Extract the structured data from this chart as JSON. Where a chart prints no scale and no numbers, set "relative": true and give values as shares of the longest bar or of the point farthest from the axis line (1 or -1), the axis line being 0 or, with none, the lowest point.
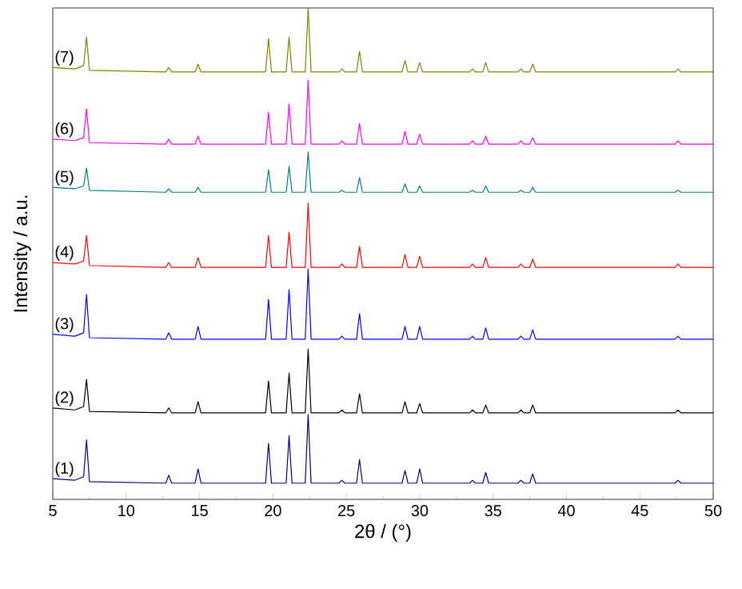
{
  "chart_data": {
    "type": "line",
    "relative": true,
    "xlabel": "2θ / (°)",
    "ylabel": "Intensity / a.u.",
    "xlim": [
      5,
      50
    ],
    "xticks": [
      5,
      10,
      15,
      20,
      25,
      30,
      35,
      40,
      45,
      50
    ],
    "legend": false,
    "marker": "none",
    "line_style": "solid",
    "x": [
      5,
      6.5,
      7.1,
      7.3,
      7.5,
      12.7,
      12.9,
      13.1,
      14.7,
      14.9,
      15.1,
      19.5,
      19.7,
      19.9,
      20.9,
      21.1,
      21.3,
      22.2,
      22.4,
      22.6,
      24.5,
      24.7,
      24.9,
      25.7,
      25.9,
      26.1,
      28.8,
      29.0,
      29.2,
      29.8,
      30.0,
      30.2,
      33.4,
      33.6,
      33.8,
      34.3,
      34.5,
      34.7,
      36.7,
      36.9,
      37.1,
      37.5,
      37.7,
      37.9,
      47.4,
      47.6,
      47.8,
      50
    ],
    "series": [
      {
        "name": "(1)",
        "color": "#000080",
        "values": [
          0.042,
          0.039,
          0.046,
          0.121,
          0.036,
          0.033,
          0.049,
          0.033,
          0.033,
          0.062,
          0.033,
          0.033,
          0.114,
          0.033,
          0.033,
          0.13,
          0.033,
          0.033,
          0.173,
          0.033,
          0.033,
          0.039,
          0.033,
          0.033,
          0.081,
          0.033,
          0.033,
          0.059,
          0.033,
          0.033,
          0.062,
          0.033,
          0.033,
          0.039,
          0.033,
          0.033,
          0.055,
          0.033,
          0.033,
          0.039,
          0.033,
          0.033,
          0.052,
          0.033,
          0.033,
          0.039,
          0.033,
          0.033
        ]
      },
      {
        "name": "(2)",
        "color": "#000000",
        "values": [
          0.186,
          0.182,
          0.189,
          0.244,
          0.179,
          0.176,
          0.186,
          0.176,
          0.176,
          0.199,
          0.176,
          0.176,
          0.241,
          0.176,
          0.176,
          0.257,
          0.176,
          0.176,
          0.306,
          0.176,
          0.176,
          0.182,
          0.176,
          0.176,
          0.215,
          0.176,
          0.176,
          0.199,
          0.176,
          0.176,
          0.195,
          0.176,
          0.176,
          0.182,
          0.176,
          0.176,
          0.192,
          0.176,
          0.176,
          0.182,
          0.176,
          0.176,
          0.192,
          0.176,
          0.176,
          0.182,
          0.176,
          0.176
        ]
      },
      {
        "name": "(3)",
        "color": "#0000ff",
        "values": [
          0.336,
          0.332,
          0.339,
          0.417,
          0.329,
          0.326,
          0.339,
          0.326,
          0.326,
          0.352,
          0.326,
          0.326,
          0.407,
          0.326,
          0.326,
          0.427,
          0.326,
          0.326,
          0.469,
          0.326,
          0.326,
          0.332,
          0.326,
          0.326,
          0.378,
          0.326,
          0.326,
          0.352,
          0.326,
          0.326,
          0.352,
          0.326,
          0.326,
          0.332,
          0.326,
          0.326,
          0.349,
          0.326,
          0.326,
          0.332,
          0.326,
          0.326,
          0.345,
          0.326,
          0.326,
          0.332,
          0.326,
          0.326
        ]
      },
      {
        "name": "(4)",
        "color": "#ff0000",
        "values": [
          0.482,
          0.479,
          0.485,
          0.537,
          0.476,
          0.472,
          0.482,
          0.472,
          0.472,
          0.492,
          0.472,
          0.472,
          0.537,
          0.472,
          0.472,
          0.544,
          0.472,
          0.472,
          0.603,
          0.472,
          0.472,
          0.479,
          0.472,
          0.472,
          0.515,
          0.472,
          0.472,
          0.498,
          0.472,
          0.472,
          0.495,
          0.472,
          0.472,
          0.479,
          0.472,
          0.472,
          0.492,
          0.472,
          0.472,
          0.479,
          0.472,
          0.472,
          0.489,
          0.472,
          0.472,
          0.479,
          0.472,
          0.472
        ]
      },
      {
        "name": "(5)",
        "color": "#008080",
        "values": [
          0.635,
          0.632,
          0.638,
          0.674,
          0.629,
          0.625,
          0.632,
          0.625,
          0.625,
          0.635,
          0.625,
          0.625,
          0.671,
          0.625,
          0.625,
          0.678,
          0.625,
          0.625,
          0.707,
          0.625,
          0.625,
          0.629,
          0.625,
          0.625,
          0.655,
          0.625,
          0.625,
          0.642,
          0.625,
          0.625,
          0.638,
          0.625,
          0.625,
          0.629,
          0.625,
          0.625,
          0.638,
          0.625,
          0.625,
          0.629,
          0.625,
          0.625,
          0.635,
          0.625,
          0.625,
          0.629,
          0.625,
          0.625
        ]
      },
      {
        "name": "(6)",
        "color": "#ff00ff",
        "values": [
          0.733,
          0.73,
          0.736,
          0.795,
          0.726,
          0.723,
          0.733,
          0.723,
          0.723,
          0.739,
          0.723,
          0.723,
          0.788,
          0.723,
          0.723,
          0.805,
          0.723,
          0.723,
          0.853,
          0.723,
          0.723,
          0.73,
          0.723,
          0.723,
          0.765,
          0.723,
          0.723,
          0.749,
          0.723,
          0.723,
          0.743,
          0.723,
          0.723,
          0.73,
          0.723,
          0.723,
          0.739,
          0.723,
          0.723,
          0.73,
          0.723,
          0.723,
          0.736,
          0.723,
          0.723,
          0.73,
          0.723,
          0.723
        ]
      },
      {
        "name": "(7)",
        "color": "#808000",
        "values": [
          0.879,
          0.876,
          0.883,
          0.941,
          0.873,
          0.87,
          0.879,
          0.87,
          0.87,
          0.886,
          0.87,
          0.87,
          0.938,
          0.87,
          0.87,
          0.941,
          0.87,
          0.87,
          1,
          0.87,
          0.87,
          0.876,
          0.87,
          0.87,
          0.912,
          0.87,
          0.87,
          0.893,
          0.87,
          0.87,
          0.889,
          0.87,
          0.87,
          0.876,
          0.87,
          0.87,
          0.889,
          0.87,
          0.87,
          0.876,
          0.87,
          0.87,
          0.886,
          0.87,
          0.87,
          0.876,
          0.87,
          0.87
        ]
      }
    ]
  }
}
